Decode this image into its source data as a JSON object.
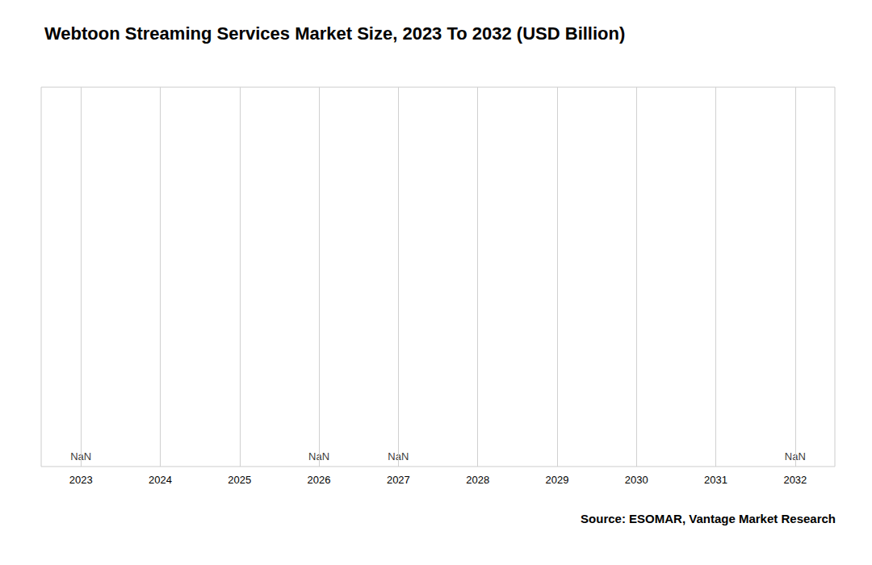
{
  "chart_data": {
    "type": "bar",
    "title": "Webtoon Streaming Services Market Size, 2023 To 2032 (USD Billion)",
    "categories": [
      "2023",
      "2024",
      "2025",
      "2026",
      "2027",
      "2028",
      "2029",
      "2030",
      "2031",
      "2032"
    ],
    "values": [
      null,
      null,
      null,
      null,
      null,
      null,
      null,
      null,
      null,
      null
    ],
    "annotations": [
      {
        "x": "2023",
        "text": "NaN"
      },
      {
        "x": "2026",
        "text": "NaN"
      },
      {
        "x": "2027",
        "text": "NaN"
      },
      {
        "x": "2032",
        "text": "NaN"
      }
    ],
    "source": "Source: ESOMAR, Vantage Market Research",
    "ylim": [
      0,
      1
    ],
    "yticks": [],
    "tick_labels": "x",
    "grid": true
  }
}
